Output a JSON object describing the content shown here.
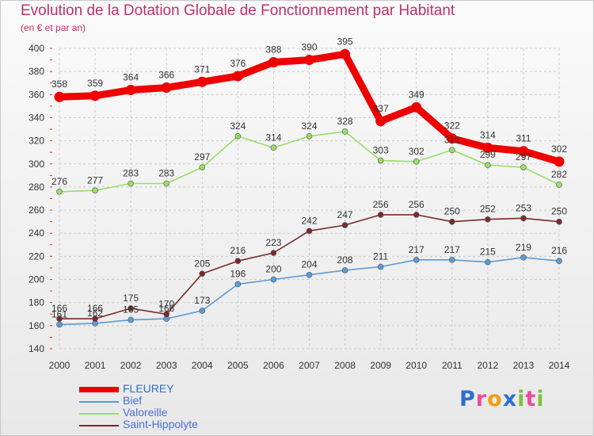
{
  "chart_data": {
    "type": "line",
    "title": "Evolution de la Dotation Globale de Fonctionnement par Habitant",
    "subtitle": "(en € et par an)",
    "xlabel": "",
    "ylabel": "",
    "x": [
      "2000",
      "2001",
      "2002",
      "2003",
      "2004",
      "2005",
      "2006",
      "2007",
      "2008",
      "2009",
      "2010",
      "2011",
      "2012",
      "2013",
      "2014"
    ],
    "ylim": [
      140,
      400
    ],
    "yticks": [
      140,
      160,
      180,
      200,
      220,
      240,
      260,
      280,
      300,
      320,
      340,
      360,
      380,
      400
    ],
    "grid": true,
    "legend_position": "bottom-left",
    "series": [
      {
        "name": "FLEUREY",
        "color": "#ee0000",
        "values": [
          358,
          359,
          364,
          366,
          371,
          376,
          388,
          390,
          395,
          337,
          349,
          322,
          314,
          311,
          302
        ]
      },
      {
        "name": "Bief",
        "color": "#5b9bd5",
        "values": [
          161,
          162,
          165,
          166,
          173,
          196,
          200,
          204,
          208,
          211,
          217,
          217,
          215,
          219,
          216
        ]
      },
      {
        "name": "Valoreille",
        "color": "#99dd66",
        "values": [
          276,
          277,
          283,
          283,
          297,
          324,
          314,
          324,
          328,
          303,
          302,
          312,
          299,
          297,
          282
        ]
      },
      {
        "name": "Saint-Hippolyte",
        "color": "#7a2a2a",
        "values": [
          166,
          166,
          175,
          170,
          205,
          216,
          223,
          242,
          247,
          256,
          256,
          250,
          252,
          253,
          250
        ]
      }
    ]
  },
  "brand": {
    "letters": [
      "P",
      "r",
      "o",
      "x",
      "i",
      "t",
      "i"
    ],
    "colors": [
      "#2e6fcf",
      "#e94d9b",
      "#f39c12",
      "#2e6fcf",
      "#7dc242",
      "#e94d9b",
      "#7dc242"
    ]
  }
}
